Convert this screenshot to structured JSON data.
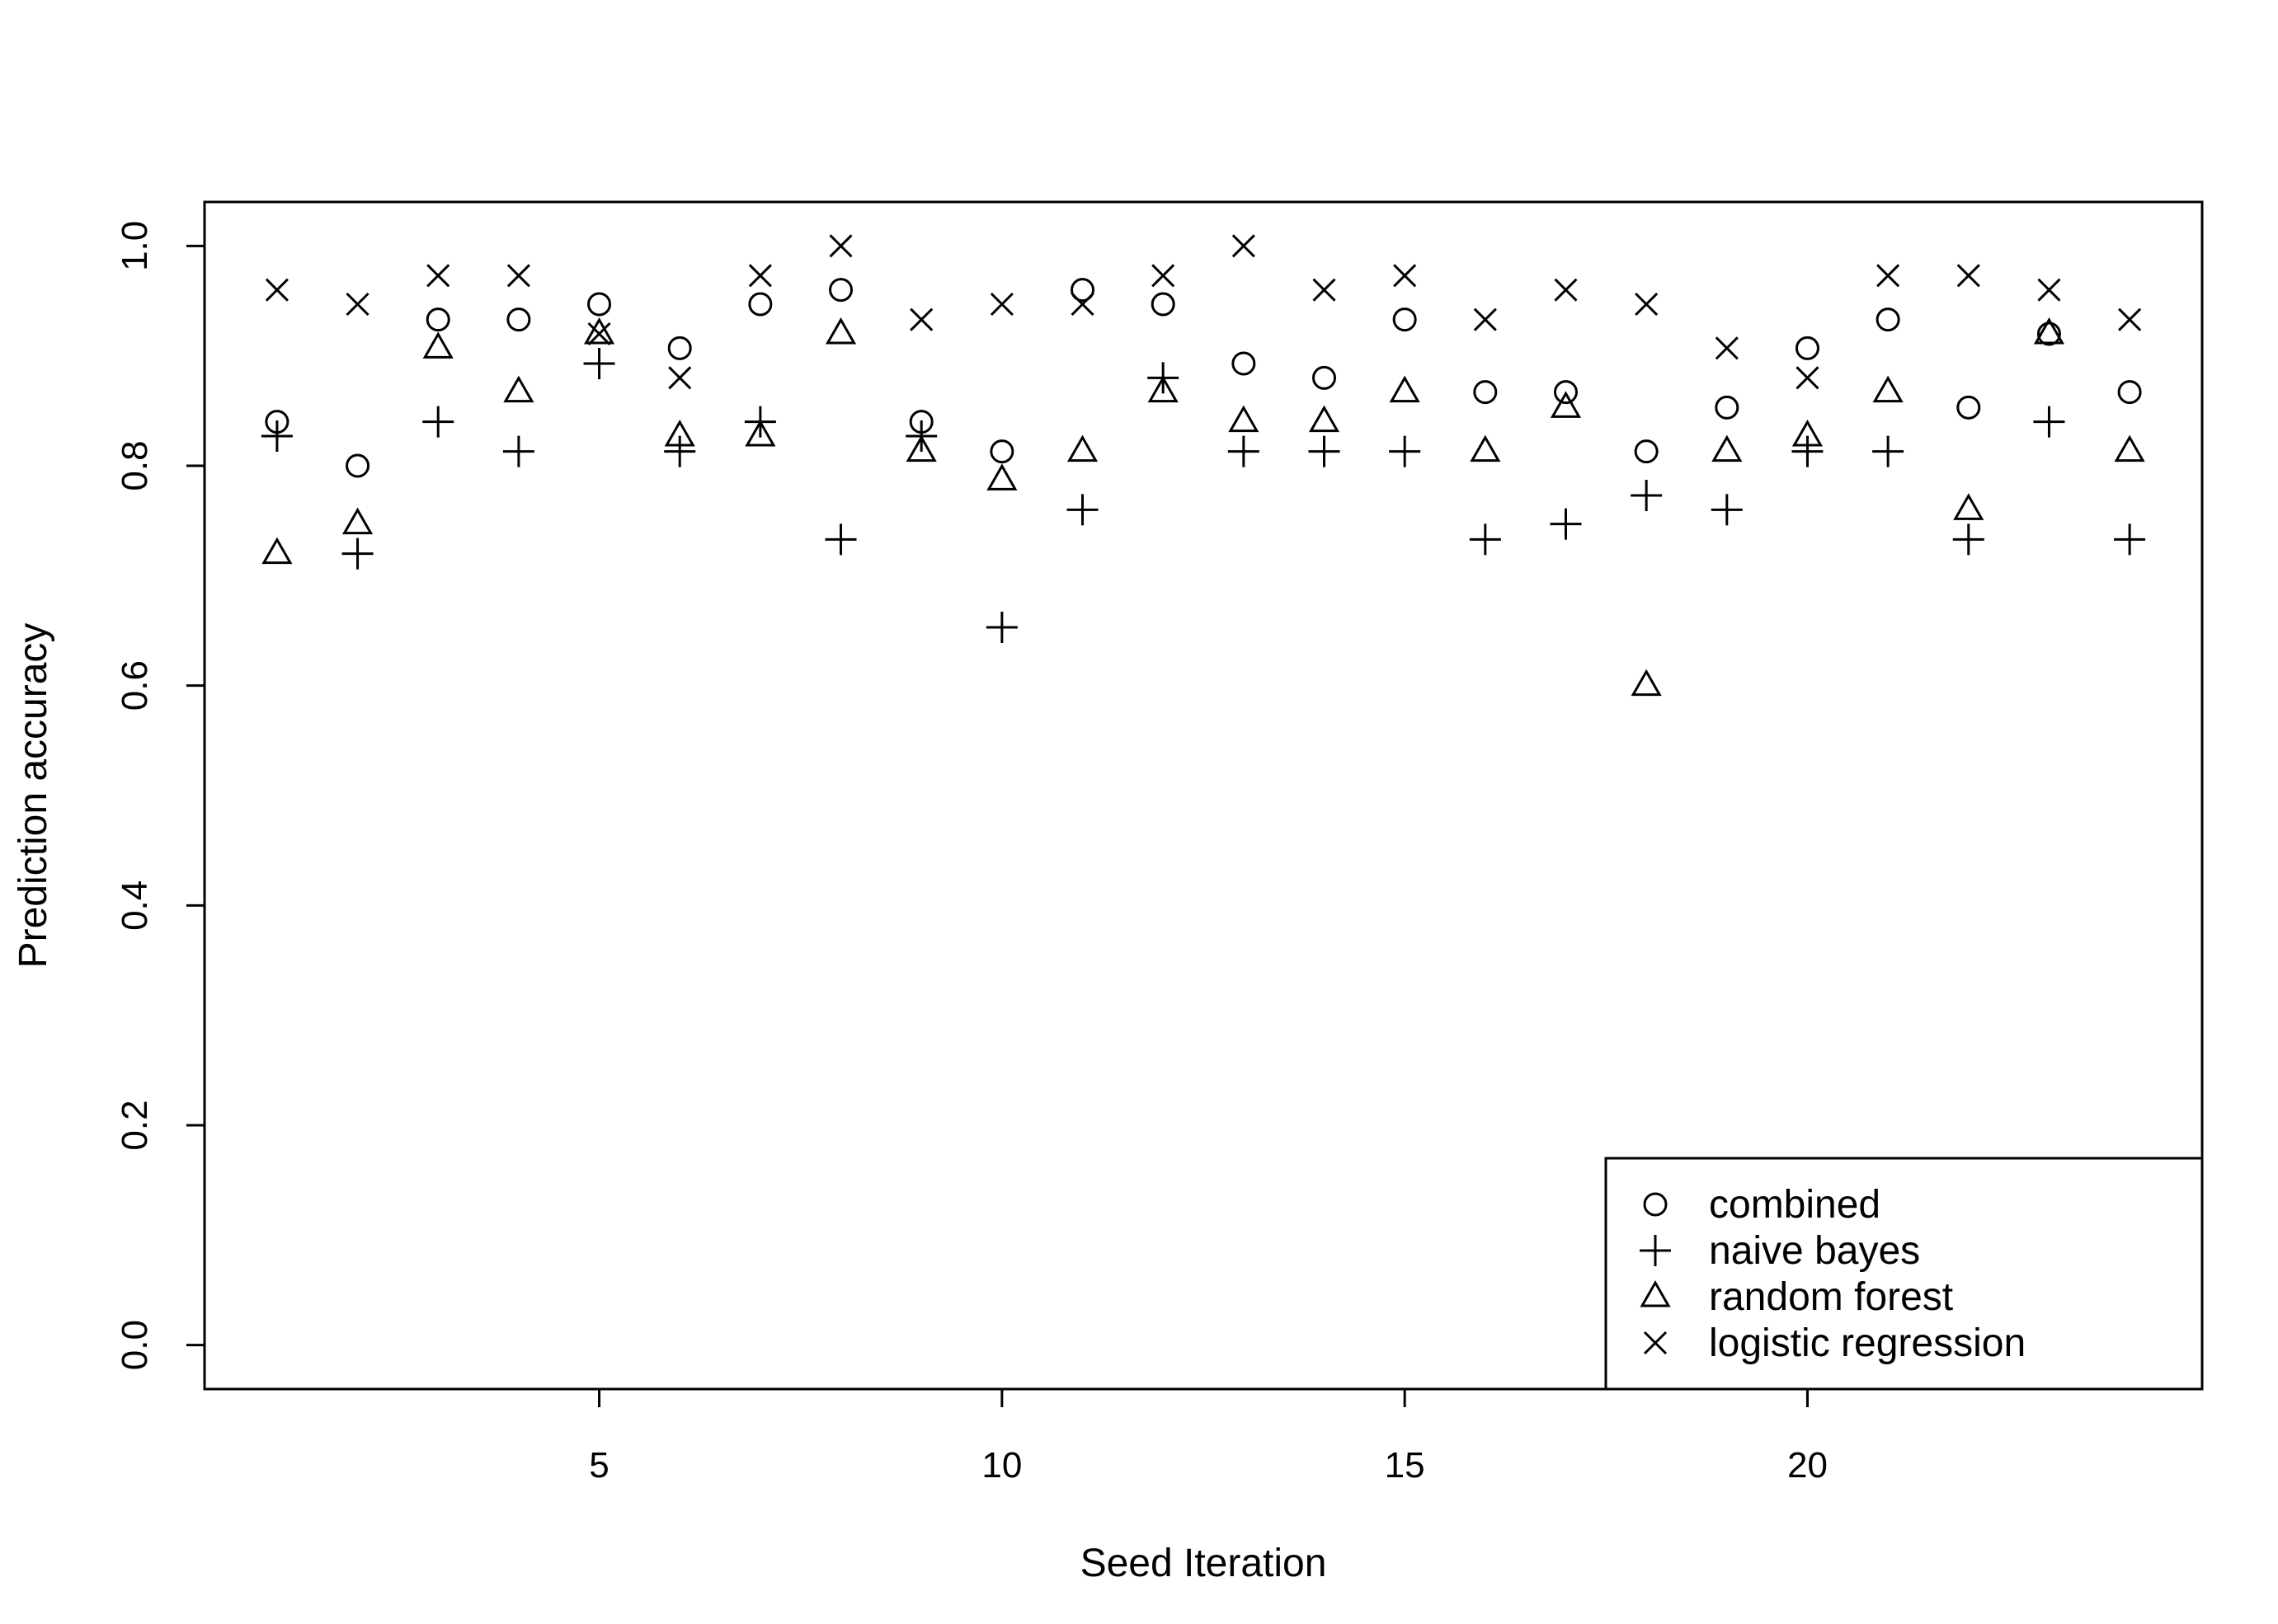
{
  "chart_data": {
    "type": "scatter",
    "xlabel": "Seed Iteration",
    "ylabel": "Prediction accuracy",
    "xlim": [
      0.1,
      24.9
    ],
    "ylim": [
      -0.04,
      1.04
    ],
    "xticks": [
      5,
      10,
      15,
      20
    ],
    "yticks": [
      0.0,
      0.2,
      0.4,
      0.6,
      0.8,
      1.0
    ],
    "ytick_labels": [
      "0.0",
      "0.2",
      "0.4",
      "0.6",
      "0.8",
      "1.0"
    ],
    "grid": false,
    "legend_position": "bottom-right",
    "x": [
      1,
      2,
      3,
      4,
      5,
      6,
      7,
      8,
      9,
      10,
      11,
      12,
      13,
      14,
      15,
      16,
      17,
      18,
      19,
      20,
      21,
      22,
      23,
      24
    ],
    "series": [
      {
        "name": "combined",
        "marker": "circle",
        "values": [
          0.84,
          0.8,
          0.933,
          0.933,
          0.947,
          0.907,
          0.947,
          0.96,
          0.84,
          0.813,
          0.96,
          0.947,
          0.893,
          0.88,
          0.933,
          0.867,
          0.867,
          0.813,
          0.853,
          0.907,
          0.933,
          0.853,
          0.92,
          0.867
        ]
      },
      {
        "name": "naive bayes",
        "marker": "plus",
        "values": [
          0.827,
          0.72,
          0.84,
          0.813,
          0.893,
          0.813,
          0.84,
          0.733,
          0.827,
          0.653,
          0.76,
          0.88,
          0.813,
          0.813,
          0.813,
          0.733,
          0.747,
          0.773,
          0.76,
          0.813,
          0.813,
          0.733,
          0.84,
          0.733
        ]
      },
      {
        "name": "random forest",
        "marker": "triangle",
        "values": [
          0.72,
          0.747,
          0.907,
          0.867,
          0.92,
          0.827,
          0.827,
          0.92,
          0.813,
          0.787,
          0.813,
          0.867,
          0.84,
          0.84,
          0.867,
          0.813,
          0.853,
          0.6,
          0.813,
          0.827,
          0.867,
          0.76,
          0.92,
          0.813
        ]
      },
      {
        "name": "logistic regression",
        "marker": "cross",
        "values": [
          0.96,
          0.947,
          0.973,
          0.973,
          0.92,
          0.88,
          0.973,
          1.0,
          0.933,
          0.947,
          0.947,
          0.973,
          1.0,
          0.96,
          0.973,
          0.933,
          0.96,
          0.947,
          0.907,
          0.88,
          0.973,
          0.973,
          0.96,
          0.933
        ]
      }
    ]
  }
}
